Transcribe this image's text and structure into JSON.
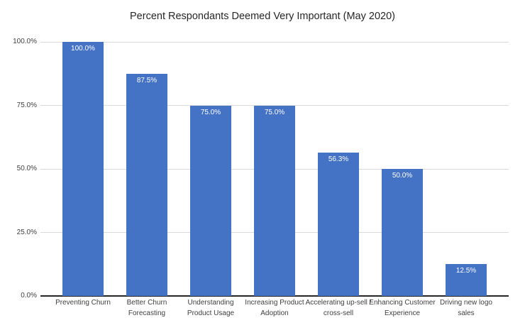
{
  "chart_data": {
    "type": "bar",
    "title": "Percent Respondants Deemed Very Important (May 2020)",
    "categories": [
      "Preventing Churn",
      "Better Churn\nForecasting",
      "Understanding\nProduct Usage",
      "Increasing Product\nAdoption",
      "Accelerating up-sell /\ncross-sell",
      "Enhancing Customer\nExperience",
      "Driving new logo\nsales"
    ],
    "values": [
      100.0,
      87.5,
      75.0,
      75.0,
      56.3,
      50.0,
      12.5
    ],
    "value_labels": [
      "100.0%",
      "87.5%",
      "75.0%",
      "75.0%",
      "56.3%",
      "50.0%",
      "12.5%"
    ],
    "yticks": [
      {
        "value": 0,
        "label": "0.0%"
      },
      {
        "value": 25,
        "label": "25.0%"
      },
      {
        "value": 50,
        "label": "50.0%"
      },
      {
        "value": 75,
        "label": "75.0%"
      },
      {
        "value": 100,
        "label": "100.0%"
      }
    ],
    "ylim": [
      0,
      100
    ],
    "xlabel": "",
    "ylabel": "",
    "grid": true,
    "legend": false,
    "colors": {
      "bar": "#4472C4",
      "gridline": "#D9D9D9",
      "axis_line": "#262626",
      "axis_text": "#3F3F3F",
      "value_label_text": "#FFFFFF",
      "background": "#FFFFFF"
    }
  }
}
